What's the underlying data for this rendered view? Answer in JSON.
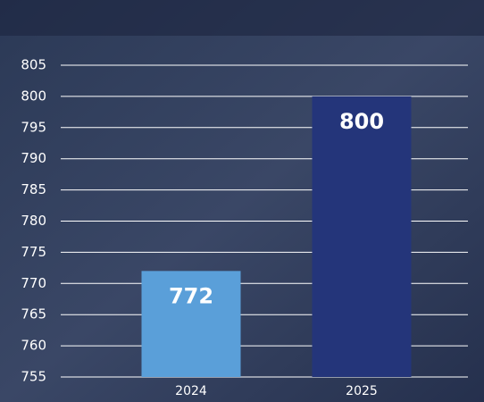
{
  "chart_data": {
    "type": "bar",
    "categories": [
      "2024",
      "2025"
    ],
    "values": [
      772,
      800
    ],
    "colors": [
      "#5a9fd9",
      "#24357a"
    ],
    "ylim": [
      755,
      805
    ],
    "yticks": [
      755,
      760,
      765,
      770,
      775,
      780,
      785,
      790,
      795,
      800,
      805
    ],
    "grid": true
  }
}
